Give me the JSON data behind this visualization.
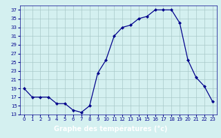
{
  "hours": [
    0,
    1,
    2,
    3,
    4,
    5,
    6,
    7,
    8,
    9,
    10,
    11,
    12,
    13,
    14,
    15,
    16,
    17,
    18,
    19,
    20,
    21,
    22,
    23
  ],
  "temps": [
    19,
    17,
    17,
    17,
    15.5,
    15.5,
    14,
    13.5,
    15,
    22.5,
    25.5,
    31,
    33,
    33.5,
    35,
    35.5,
    37,
    37,
    37,
    34,
    25.5,
    21.5,
    19.5,
    16
  ],
  "line_color": "#00008B",
  "marker": "D",
  "marker_size": 2.2,
  "bg_color": "#d4f0f0",
  "grid_color": "#a8c8c8",
  "xlabel": "Graphe des températures (°c)",
  "xlabel_bg": "#000080",
  "xlabel_text_color": "#ffffff",
  "ylim": [
    13,
    38
  ],
  "yticks": [
    13,
    15,
    17,
    19,
    21,
    23,
    25,
    27,
    29,
    31,
    33,
    35,
    37
  ],
  "xticks": [
    0,
    1,
    2,
    3,
    4,
    5,
    6,
    7,
    8,
    9,
    10,
    11,
    12,
    13,
    14,
    15,
    16,
    17,
    18,
    19,
    20,
    21,
    22,
    23
  ],
  "tick_color": "#00008B",
  "tick_fontsize": 5.0,
  "xlabel_fontsize": 7.0,
  "linewidth": 0.9
}
